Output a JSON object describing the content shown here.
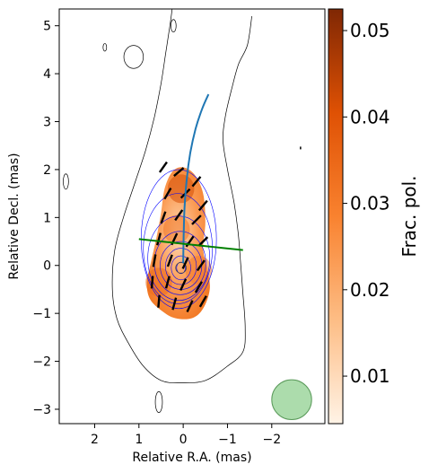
{
  "chart_data": {
    "type": "image",
    "xlabel": "Relative R.A. (mas)",
    "ylabel": "Relative Decl. (mas)",
    "xlim": [
      2.8,
      -3.2
    ],
    "ylim": [
      -3.3,
      5.35
    ],
    "xticks": [
      2,
      1,
      0,
      -1,
      -2
    ],
    "xtick_labels": [
      "2",
      "1",
      "0",
      "−1",
      "−2"
    ],
    "yticks": [
      -3,
      -2,
      -1,
      0,
      1,
      2,
      3,
      4,
      5
    ],
    "ytick_labels": [
      "−3",
      "−2",
      "−1",
      "0",
      "1",
      "2",
      "3",
      "4",
      "5"
    ],
    "colorbar": {
      "label": "Frac. pol.",
      "range": [
        0.0045,
        0.0525
      ],
      "ticks": [
        0.01,
        0.02,
        0.03,
        0.04,
        0.05
      ],
      "tick_labels": [
        "0.01",
        "0.02",
        "0.03",
        "0.04",
        "0.05"
      ],
      "cmap_stops": [
        "#fff3e6",
        "#fdbd85",
        "#f9822f",
        "#df5104",
        "#7f2704"
      ]
    },
    "polarized_region": [
      [
        0.48,
        -0.95
      ],
      [
        0.18,
        -1.1
      ],
      [
        -0.2,
        -1.1
      ],
      [
        -0.45,
        -0.9
      ],
      [
        -0.6,
        -0.5
      ],
      [
        -0.55,
        -0.1
      ],
      [
        -0.45,
        0.35
      ],
      [
        -0.5,
        0.9
      ],
      [
        -0.45,
        1.5
      ],
      [
        -0.25,
        1.9
      ],
      [
        0.02,
        2.05
      ],
      [
        0.25,
        1.95
      ],
      [
        0.42,
        1.6
      ],
      [
        0.5,
        1.1
      ],
      [
        0.6,
        0.6
      ],
      [
        0.72,
        0.1
      ],
      [
        0.82,
        -0.35
      ],
      [
        0.75,
        -0.7
      ]
    ],
    "polarization_hotspots": [
      {
        "x": 0.05,
        "y": 1.6,
        "frac_pol": 0.042
      },
      {
        "x": 0.15,
        "y": 0.75,
        "frac_pol": 0.032
      },
      {
        "x": 0.55,
        "y": -0.35,
        "frac_pol": 0.034
      },
      {
        "x": -0.35,
        "y": -0.1,
        "frac_pol": 0.03
      }
    ],
    "outer_contour": [
      [
        -1.55,
        5.2
      ],
      [
        -1.45,
        4.6
      ],
      [
        -1.25,
        4.2
      ],
      [
        -1.1,
        3.7
      ],
      [
        -0.95,
        3.1
      ],
      [
        -0.9,
        2.6
      ],
      [
        -1.0,
        2.0
      ],
      [
        -1.15,
        1.3
      ],
      [
        -1.25,
        0.6
      ],
      [
        -1.3,
        0.0
      ],
      [
        -1.35,
        -0.6
      ],
      [
        -1.4,
        -1.3
      ],
      [
        -1.35,
        -1.8
      ],
      [
        -1.0,
        -2.1
      ],
      [
        -0.5,
        -2.4
      ],
      [
        0.05,
        -2.45
      ],
      [
        0.5,
        -2.4
      ],
      [
        0.9,
        -2.1
      ],
      [
        1.25,
        -1.6
      ],
      [
        1.5,
        -1.1
      ],
      [
        1.6,
        -0.5
      ],
      [
        1.55,
        0.3
      ],
      [
        1.35,
        1.0
      ],
      [
        1.1,
        1.7
      ],
      [
        0.85,
        2.4
      ],
      [
        0.65,
        3.1
      ],
      [
        0.5,
        3.8
      ],
      [
        0.4,
        4.4
      ],
      [
        0.3,
        5.0
      ],
      [
        0.25,
        5.35
      ]
    ],
    "stokes_contours": [
      {
        "center": [
          0.05,
          -0.05
        ],
        "rx": 0.1,
        "ry": 0.12
      },
      {
        "center": [
          0.05,
          -0.05
        ],
        "rx": 0.22,
        "ry": 0.25
      },
      {
        "center": [
          0.05,
          -0.02
        ],
        "rx": 0.35,
        "ry": 0.38
      },
      {
        "center": [
          0.05,
          0.0
        ],
        "rx": 0.47,
        "ry": 0.5
      },
      {
        "center": [
          0.07,
          0.05
        ],
        "rx": 0.58,
        "ry": 0.66
      },
      {
        "center": [
          0.1,
          0.15
        ],
        "rx": 0.7,
        "ry": 0.88
      },
      {
        "center": [
          0.12,
          0.35
        ],
        "rx": 0.78,
        "ry": 1.15
      },
      {
        "center": [
          0.1,
          0.55
        ],
        "rx": 0.85,
        "ry": 1.45
      }
    ],
    "small_contours": [
      {
        "center": [
          1.12,
          4.35
        ],
        "rx": 0.22,
        "ry": 0.24
      },
      {
        "center": [
          1.77,
          4.55
        ],
        "rx": 0.04,
        "ry": 0.08
      },
      {
        "center": [
          0.22,
          5.0
        ],
        "rx": 0.06,
        "ry": 0.13
      },
      {
        "center": [
          2.65,
          1.75
        ],
        "rx": 0.06,
        "ry": 0.16
      },
      {
        "center": [
          0.55,
          -2.85
        ],
        "rx": 0.08,
        "ry": 0.22
      }
    ],
    "evpa_vectors": [
      {
        "x": 0.45,
        "y": 2.05,
        "angle_deg": 35
      },
      {
        "x": 0.1,
        "y": 1.95,
        "angle_deg": 50
      },
      {
        "x": -0.3,
        "y": 1.75,
        "angle_deg": 40
      },
      {
        "x": 0.35,
        "y": 1.5,
        "angle_deg": 30
      },
      {
        "x": -0.05,
        "y": 1.5,
        "angle_deg": 45
      },
      {
        "x": -0.45,
        "y": 1.25,
        "angle_deg": 40
      },
      {
        "x": 0.45,
        "y": 1.0,
        "angle_deg": 20
      },
      {
        "x": 0.1,
        "y": 1.05,
        "angle_deg": 35
      },
      {
        "x": -0.3,
        "y": 0.95,
        "angle_deg": 45
      },
      {
        "x": 0.55,
        "y": 0.55,
        "angle_deg": 15
      },
      {
        "x": 0.2,
        "y": 0.55,
        "angle_deg": 25
      },
      {
        "x": -0.15,
        "y": 0.5,
        "angle_deg": 35
      },
      {
        "x": -0.45,
        "y": 0.5,
        "angle_deg": 45
      },
      {
        "x": 0.65,
        "y": 0.1,
        "angle_deg": 10
      },
      {
        "x": 0.3,
        "y": 0.1,
        "angle_deg": 20
      },
      {
        "x": -0.05,
        "y": 0.05,
        "angle_deg": 25
      },
      {
        "x": -0.4,
        "y": 0.0,
        "angle_deg": 35
      },
      {
        "x": 0.7,
        "y": -0.35,
        "angle_deg": 5
      },
      {
        "x": 0.35,
        "y": -0.35,
        "angle_deg": 15
      },
      {
        "x": 0.0,
        "y": -0.4,
        "angle_deg": 25
      },
      {
        "x": -0.35,
        "y": -0.45,
        "angle_deg": 30
      },
      {
        "x": 0.55,
        "y": -0.75,
        "angle_deg": 5
      },
      {
        "x": 0.2,
        "y": -0.8,
        "angle_deg": 15
      },
      {
        "x": -0.15,
        "y": -0.85,
        "angle_deg": 25
      },
      {
        "x": -0.45,
        "y": -0.75,
        "angle_deg": 30
      }
    ],
    "jet_ridge_line": [
      [
        0.0,
        0.05
      ],
      [
        -0.01,
        0.6
      ],
      [
        -0.03,
        1.2
      ],
      [
        -0.08,
        1.8
      ],
      [
        -0.16,
        2.35
      ],
      [
        -0.28,
        2.85
      ],
      [
        -0.42,
        3.25
      ],
      [
        -0.57,
        3.57
      ]
    ],
    "transverse_cut": [
      [
        1.0,
        0.55
      ],
      [
        -1.35,
        0.32
      ]
    ],
    "core_marker": {
      "x": 0.05,
      "y": -0.05,
      "r": 0.12
    },
    "beam": {
      "x": -2.45,
      "y": -2.8,
      "r": 0.45
    },
    "isolated_tick": {
      "x": -2.65,
      "y": 2.45
    },
    "colors": {
      "ridge": "#1f77b4",
      "cut": "#008000",
      "stokes_contour": "#0000ff",
      "outer_contour": "#000000",
      "beam_fill": "#90d090",
      "beam_edge": "#5a9a5a"
    }
  }
}
